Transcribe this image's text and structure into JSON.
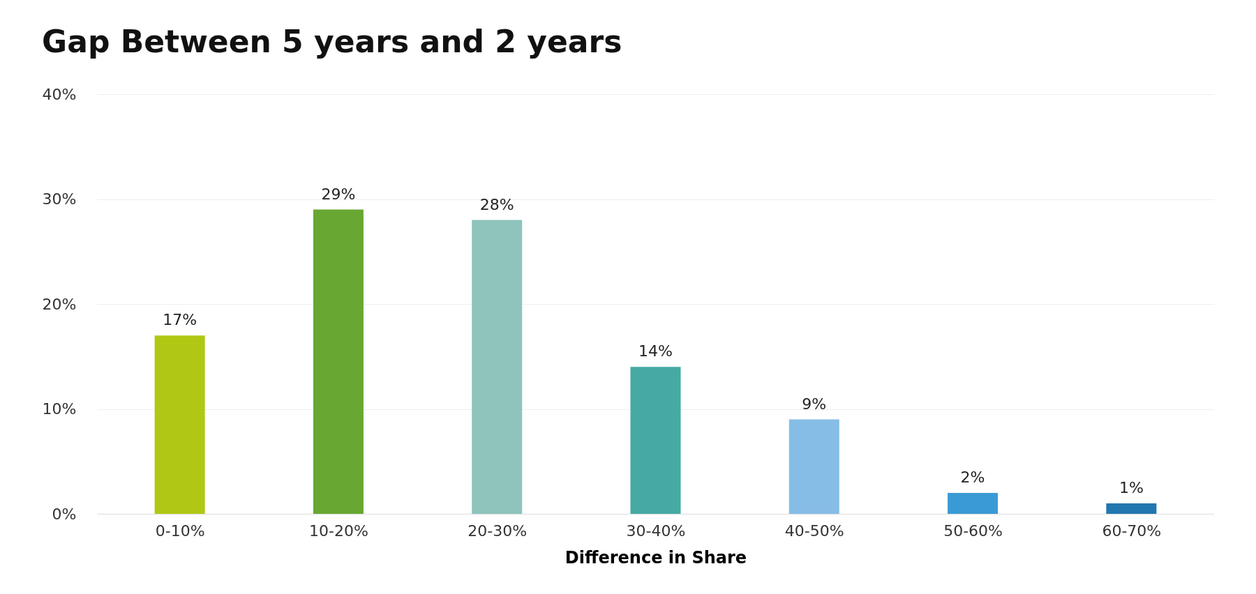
{
  "chart_data": {
    "type": "bar",
    "title": "Gap Between 5 years and 2 years",
    "xlabel": "Difference in Share",
    "categories": [
      "0-10%",
      "10-20%",
      "20-30%",
      "30-40%",
      "40-50%",
      "50-60%",
      "60-70%"
    ],
    "values": [
      17,
      29,
      28,
      14,
      9,
      2,
      1
    ],
    "value_labels": [
      "17%",
      "29%",
      "28%",
      "14%",
      "9%",
      "2%",
      "1%"
    ],
    "colors": [
      "#b0c814",
      "#68a832",
      "#8ec4bc",
      "#45aaa4",
      "#86bde6",
      "#3a9ad6",
      "#2277b0"
    ],
    "ylim": [
      0,
      40
    ],
    "yticks": [
      {
        "value": 0,
        "label": "0%"
      },
      {
        "value": 10,
        "label": "10%"
      },
      {
        "value": 20,
        "label": "20%"
      },
      {
        "value": 30,
        "label": "30%"
      },
      {
        "value": 40,
        "label": "40%"
      }
    ],
    "grid": "y"
  }
}
